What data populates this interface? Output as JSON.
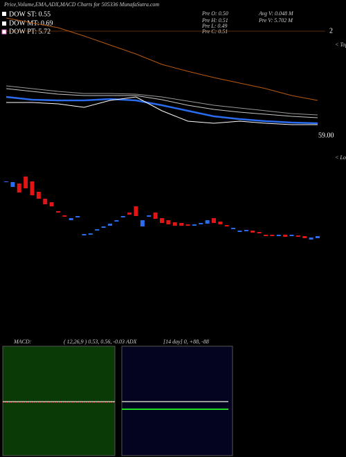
{
  "chart_data": {
    "type": "candlestick",
    "title": "Price,Volume,EMA,ADX,MACD Charts for 505336  MunafaSutra.com",
    "dow": [
      "DOW ST: 0.55",
      "DOW MT: 0.69",
      "DOW PT: 5.72"
    ],
    "pre": [
      "Pre  O: 0.50",
      "Pre  H: 0.51",
      "Pre  L: 0.49",
      "Pre  C: 0.51"
    ],
    "volume_stats": [
      "Avg V: 0.048  M",
      "Pre  V: 5.702  M"
    ],
    "right_marker": "2",
    "tops_label": "< Tops",
    "lows_label": "< Lows",
    "price_label": "59.00",
    "ylim": [
      40,
      360
    ],
    "up_color": "#2a6cf0",
    "down_color": "#e01515",
    "open": [
      138,
      130,
      135,
      145,
      138,
      123,
      113,
      108,
      95,
      89,
      82,
      86,
      60,
      61,
      67,
      71,
      74,
      80,
      86,
      93,
      102,
      73,
      87,
      93,
      85,
      82,
      79,
      78,
      76,
      74,
      76,
      77,
      85,
      80,
      75,
      69,
      65,
      66,
      67,
      65,
      61,
      61,
      59,
      61,
      59,
      60,
      59,
      54,
      56
    ],
    "close": [
      138,
      137,
      122,
      128,
      118,
      113,
      105,
      102,
      93,
      87,
      85,
      88,
      62,
      63,
      69,
      73,
      77,
      82,
      88,
      90,
      88,
      82,
      89,
      84,
      78,
      76,
      74,
      74,
      74,
      76,
      78,
      82,
      78,
      76,
      73,
      71,
      67,
      68,
      64,
      63,
      59,
      59,
      61,
      58,
      61,
      58,
      56,
      57,
      59
    ],
    "line_x": [
      0,
      4,
      8,
      12,
      16,
      20,
      24,
      28,
      32,
      36,
      40,
      44,
      48
    ],
    "lines": [
      {
        "color": "#b85a10",
        "values": [
          374,
          367,
          360,
          348,
          335,
          322,
          307,
          297,
          288,
          280,
          272,
          262,
          255
        ]
      },
      {
        "color": "#9a9a9a",
        "values": [
          276,
          272,
          268,
          265,
          265,
          264,
          260,
          254,
          248,
          244,
          240,
          236,
          234
        ]
      },
      {
        "color": "#c8c8c8",
        "values": [
          272,
          268,
          264,
          262,
          262,
          262,
          256,
          248,
          242,
          238,
          235,
          232,
          230
        ]
      },
      {
        "color": "#2a6cf0",
        "values": [
          260,
          256,
          255,
          255,
          257,
          255,
          248,
          240,
          232,
          228,
          225,
          223,
          222
        ]
      },
      {
        "color": "#ffffff",
        "values": [
          252,
          252,
          250,
          245,
          255,
          260,
          240,
          225,
          222,
          225,
          222,
          220,
          220
        ]
      }
    ],
    "macd_label": "MACD:",
    "macd_params": "( 12,26,9 ) 0.53, 0.56, -0.03",
    "adx_label": "ADX",
    "adx_params": "[14  day] 0, +88, -88"
  }
}
